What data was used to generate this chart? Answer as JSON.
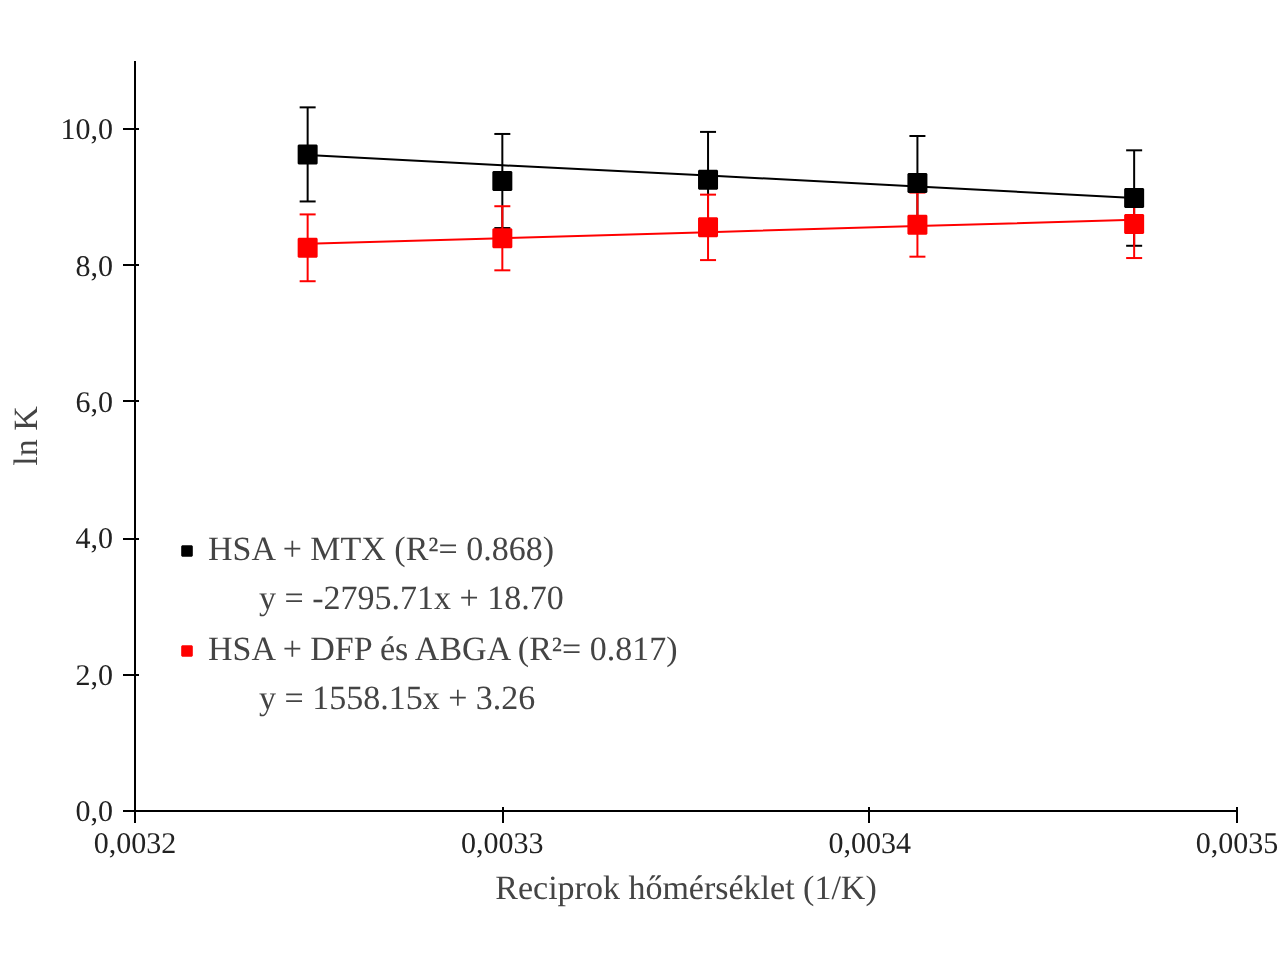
{
  "chart_data": {
    "type": "scatter",
    "xlabel": "Reciprok hőmérséklet (1/K)",
    "ylabel": "ln K",
    "x": [
      0.003247,
      0.0033,
      0.003356,
      0.003413,
      0.003472
    ],
    "series": [
      {
        "name": "HSA + MTX (R²= 0.868)",
        "color": "#000000",
        "values": [
          9.63,
          9.24,
          9.26,
          9.21,
          8.99
        ],
        "errors": [
          0.69,
          0.69,
          0.7,
          0.69,
          0.7
        ]
      },
      {
        "name": "HSA + DFP és ABGA (R²= 0.817)",
        "color": "#ff0000",
        "values": [
          8.26,
          8.4,
          8.56,
          8.6,
          8.61
        ],
        "errors": [
          0.49,
          0.47,
          0.48,
          0.47,
          0.5
        ]
      },
      {
        "type": "line",
        "marker": "none",
        "color": "#000000",
        "values": [
          9.62,
          9.47,
          9.32,
          9.16,
          8.99
        ]
      },
      {
        "type": "line",
        "marker": "none",
        "color": "#ff0000",
        "values": [
          8.32,
          8.4,
          8.49,
          8.58,
          8.67
        ]
      }
    ],
    "annotations": [
      "y = -2795.71x + 18.70",
      "y = 1558.15x + 3.26"
    ],
    "xlim": [
      0.0032,
      0.0035
    ],
    "ylim": [
      0,
      11
    ],
    "xticks": [
      {
        "value": 0.0032,
        "label": "0,0032"
      },
      {
        "value": 0.0033,
        "label": "0,0033"
      },
      {
        "value": 0.0034,
        "label": "0,0034"
      },
      {
        "value": 0.0035,
        "label": "0,0035"
      }
    ],
    "yticks": [
      {
        "value": 0,
        "label": "0,0"
      },
      {
        "value": 2,
        "label": "2,0"
      },
      {
        "value": 4,
        "label": "4,0"
      },
      {
        "value": 6,
        "label": "6,0"
      },
      {
        "value": 8,
        "label": "8,0"
      },
      {
        "value": 10,
        "label": "10,0"
      }
    ],
    "marker": "square",
    "grid": false,
    "legend": "left"
  }
}
